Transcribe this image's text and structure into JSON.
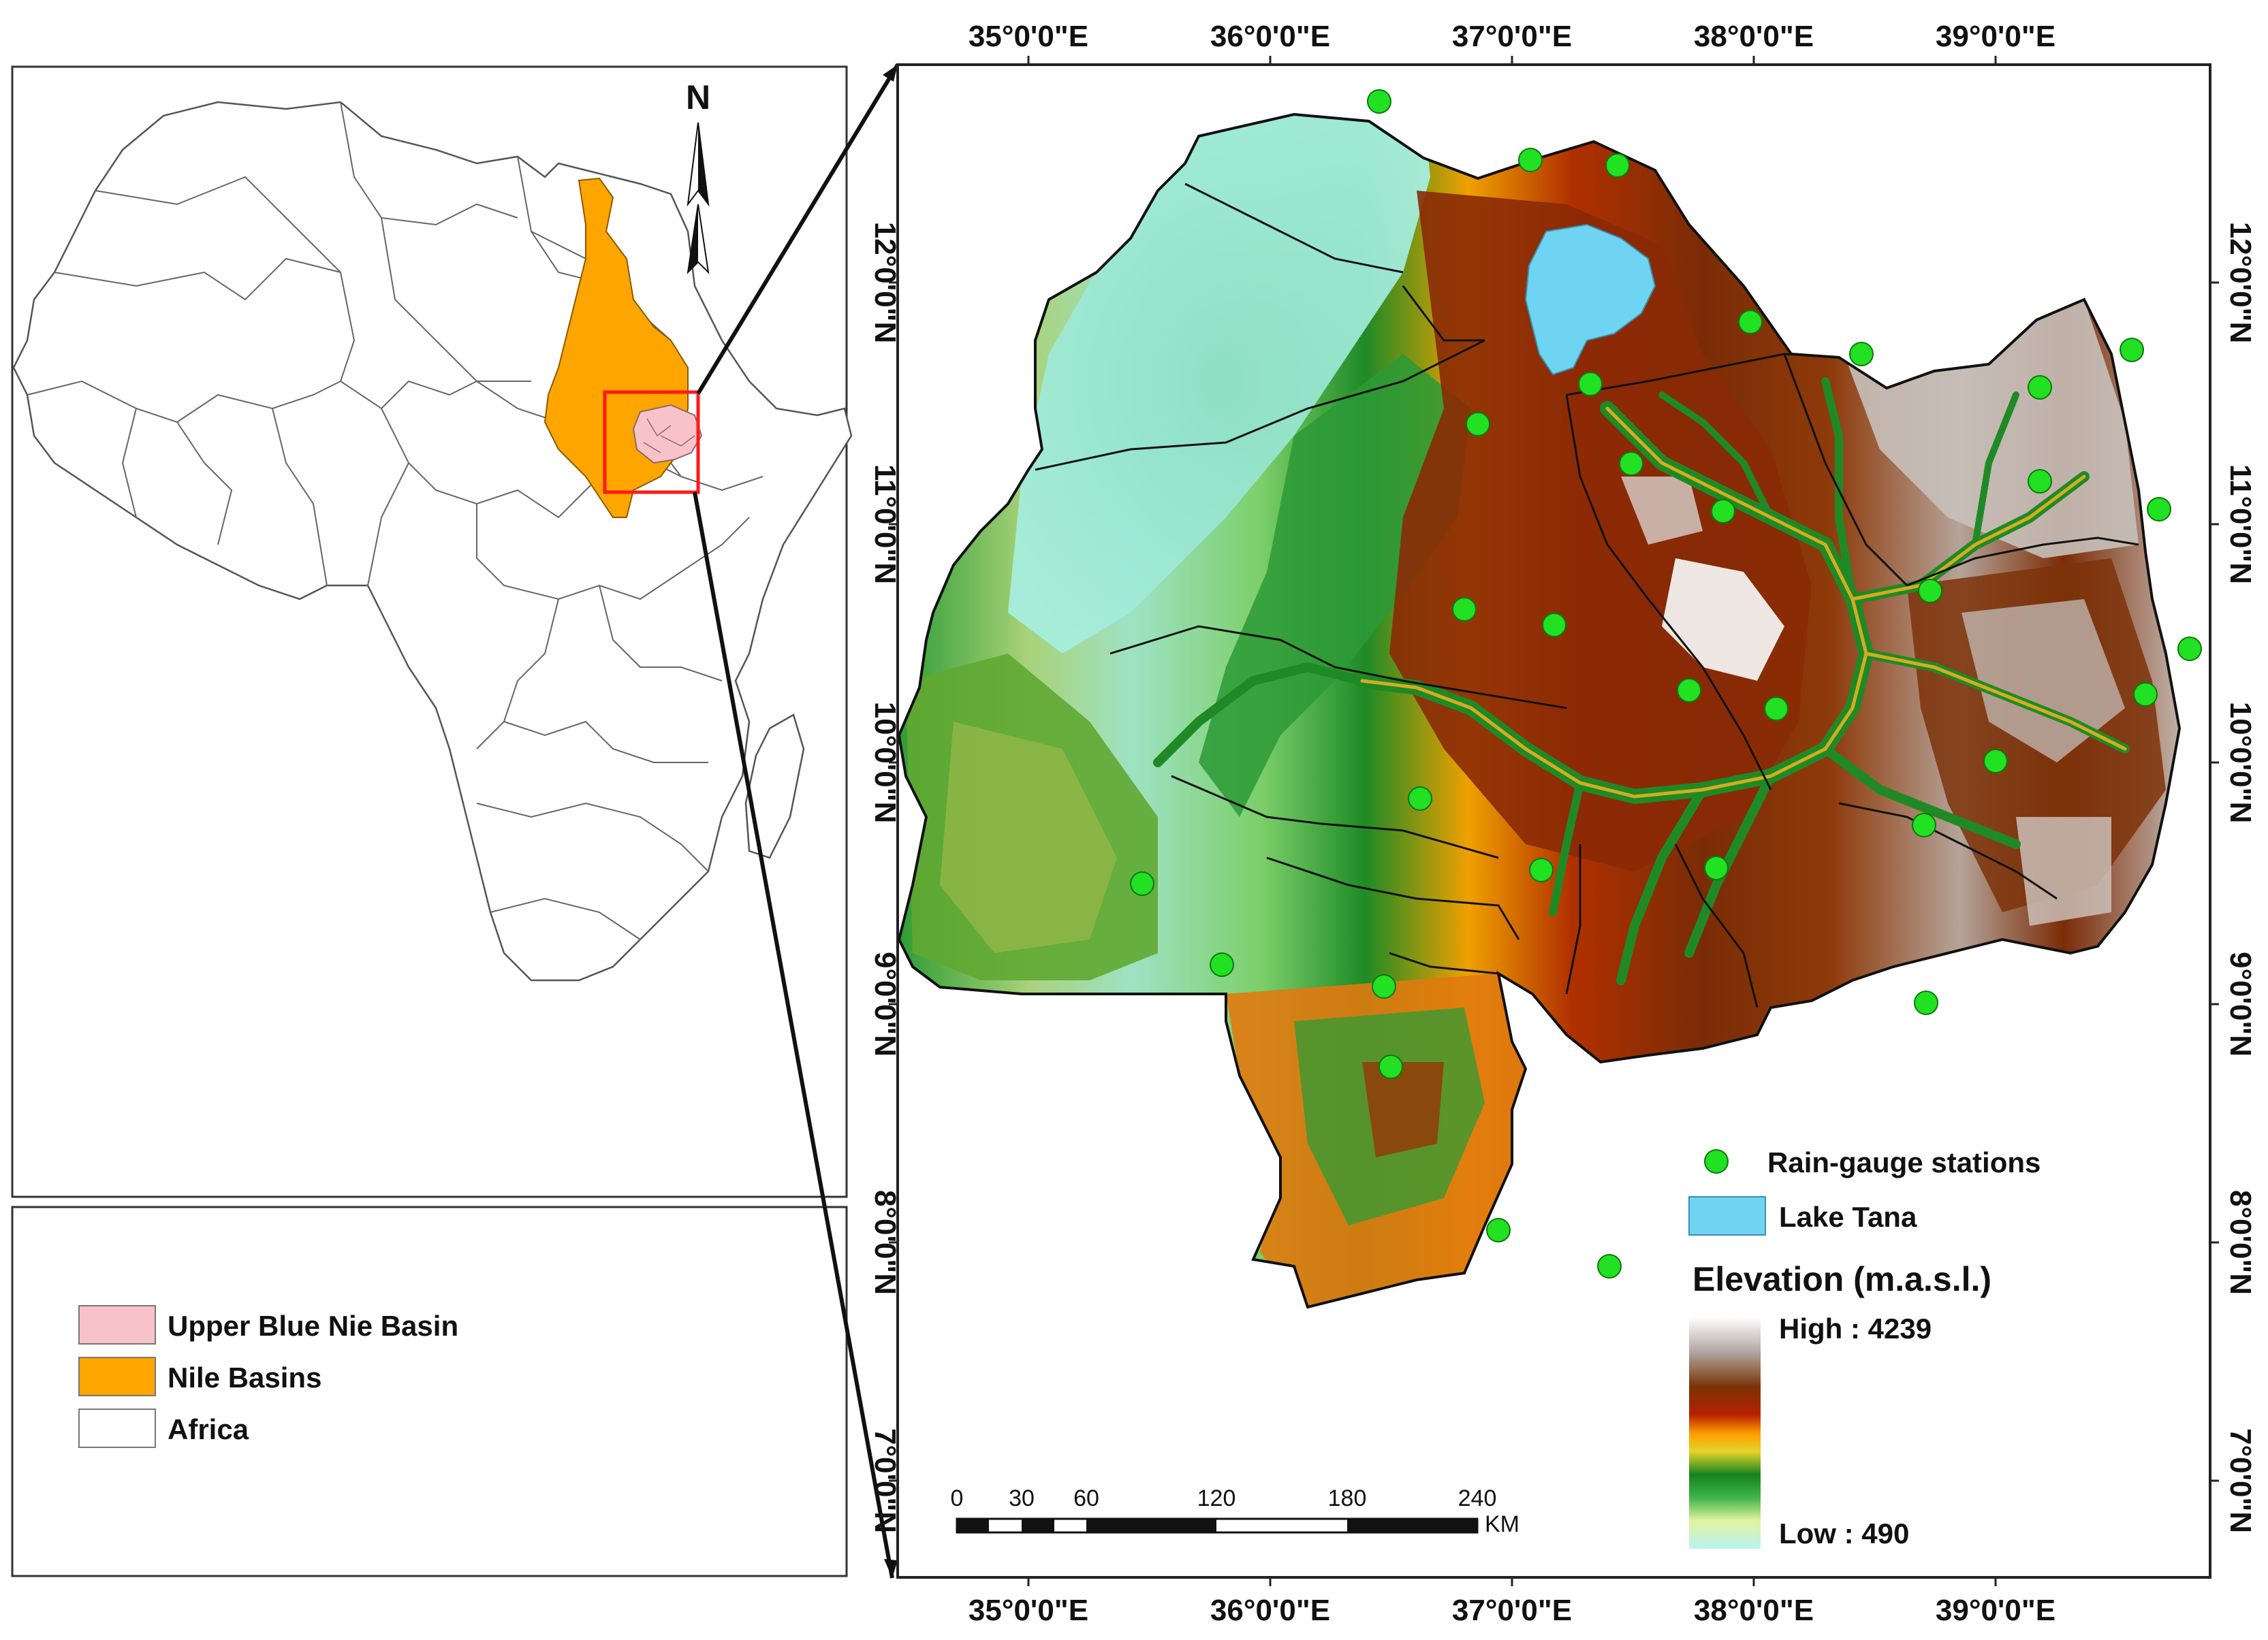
{
  "inset_legend": {
    "items": [
      {
        "label": "Upper Blue Nie Basin",
        "color": "#f8c3c8"
      },
      {
        "label": "Nile Basins",
        "color": "#ffa500"
      },
      {
        "label": "Africa",
        "color": "#ffffff"
      }
    ]
  },
  "north_arrow_label": "N",
  "lon_labels": [
    "35°0'0\"E",
    "36°0'0\"E",
    "37°0'0\"E",
    "38°0'0\"E",
    "39°0'0\"E"
  ],
  "lat_labels": [
    "12°0'0\"N",
    "11°0'0\"N",
    "10°0'0\"N",
    "9°0'0\"N",
    "8°0'0\"N",
    "7°0'0\"N"
  ],
  "map_legend": {
    "stations_label": "Rain-gauge stations",
    "lake_label": "Lake Tana",
    "elevation_title": "Elevation (m.a.s.l.)",
    "high_label": "High : 4239",
    "low_label": "Low : 490",
    "station_color": "#22e022",
    "lake_color": "#6fd4f2"
  },
  "scale_bar": {
    "ticks": [
      "0",
      "30",
      "60",
      "120",
      "180",
      "240"
    ],
    "unit": "KM"
  }
}
